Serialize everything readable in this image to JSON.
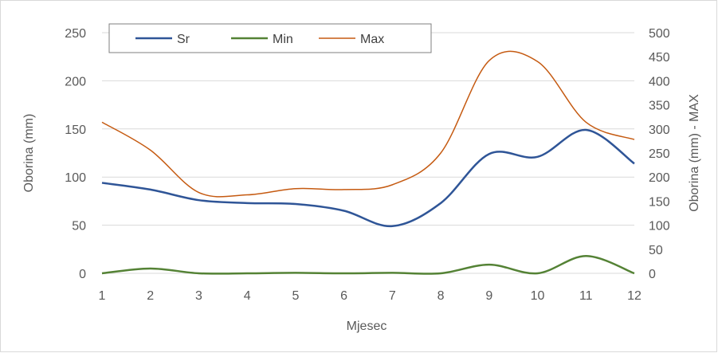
{
  "chart_data": {
    "type": "line",
    "x": [
      1,
      2,
      3,
      4,
      5,
      6,
      7,
      8,
      9,
      10,
      11,
      12
    ],
    "xlabel": "Mjesec",
    "ylabel": "Oborina (mm)",
    "y2label": "Oborina (mm) - MAX",
    "ylim": [
      0,
      250
    ],
    "y2lim": [
      0,
      500
    ],
    "yticks": [
      0,
      50,
      100,
      150,
      200,
      250
    ],
    "y2ticks": [
      0,
      50,
      100,
      150,
      200,
      250,
      300,
      350,
      400,
      450,
      500
    ],
    "grid": "horizontal",
    "legend": "top-left",
    "series": [
      {
        "name": "Sr",
        "axis": "left",
        "color": "#2f5597",
        "values": [
          94,
          87,
          76,
          73,
          72,
          65,
          49,
          73,
          124,
          121,
          149,
          114
        ]
      },
      {
        "name": "Min",
        "axis": "left",
        "color": "#548235",
        "values": [
          0,
          5,
          0,
          0,
          0.5,
          0,
          0.5,
          0,
          9,
          0,
          18,
          0
        ]
      },
      {
        "name": "Max",
        "axis": "right",
        "color": "#c55a11",
        "values": [
          314,
          256,
          168,
          163,
          176,
          174,
          184,
          250,
          442,
          440,
          314,
          278
        ]
      }
    ]
  }
}
